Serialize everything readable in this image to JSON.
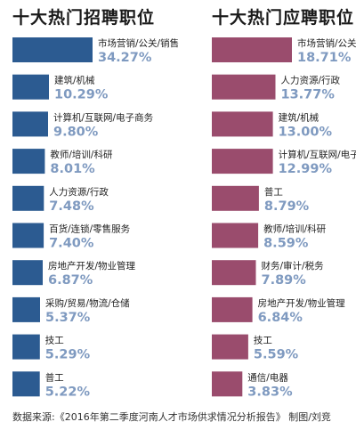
{
  "colors": {
    "recruit": "#2c5b91",
    "seek": "#9a4c6d",
    "value_text": "#7f9ac0"
  },
  "source_text": "数据来源:《2016年第二季度河南人才市场供求情况分析报告》 制图/刘竞",
  "chart_data": [
    {
      "type": "bar",
      "title": "十大热门招聘职位",
      "categories": [
        "市场营销/公关/销售",
        "建筑/机械",
        "计算机/互联网/电子商务",
        "教师/培训/科研",
        "人力资源/行政",
        "百货/连锁/零售服务",
        "房地产开发/物业管理",
        "采购/贸易/物流/仓储",
        "技工",
        "普工"
      ],
      "values": [
        34.27,
        10.29,
        9.8,
        8.01,
        7.48,
        7.4,
        6.87,
        5.37,
        5.29,
        5.22
      ],
      "value_labels": [
        "34.27%",
        "10.29%",
        "9.80%",
        "8.01%",
        "7.48%",
        "7.40%",
        "6.87%",
        "5.37%",
        "5.29%",
        "5.22%"
      ],
      "unit": "%"
    },
    {
      "type": "bar",
      "title": "十大热门应聘职位",
      "categories": [
        "市场营销/公关/销售",
        "人力资源/行政",
        "建筑/机械",
        "计算机/互联网/电子商务",
        "普工",
        "教师/培训/科研",
        "财务/审计/税务",
        "房地产开发/物业管理",
        "技工",
        "通信/电器"
      ],
      "values": [
        18.71,
        13.77,
        13.0,
        12.99,
        8.79,
        8.59,
        7.89,
        6.84,
        5.59,
        3.83
      ],
      "value_labels": [
        "18.71%",
        "13.77%",
        "13.00%",
        "12.99%",
        "8.79%",
        "8.59%",
        "7.89%",
        "6.84%",
        "5.59%",
        "3.83%"
      ],
      "unit": "%"
    }
  ]
}
